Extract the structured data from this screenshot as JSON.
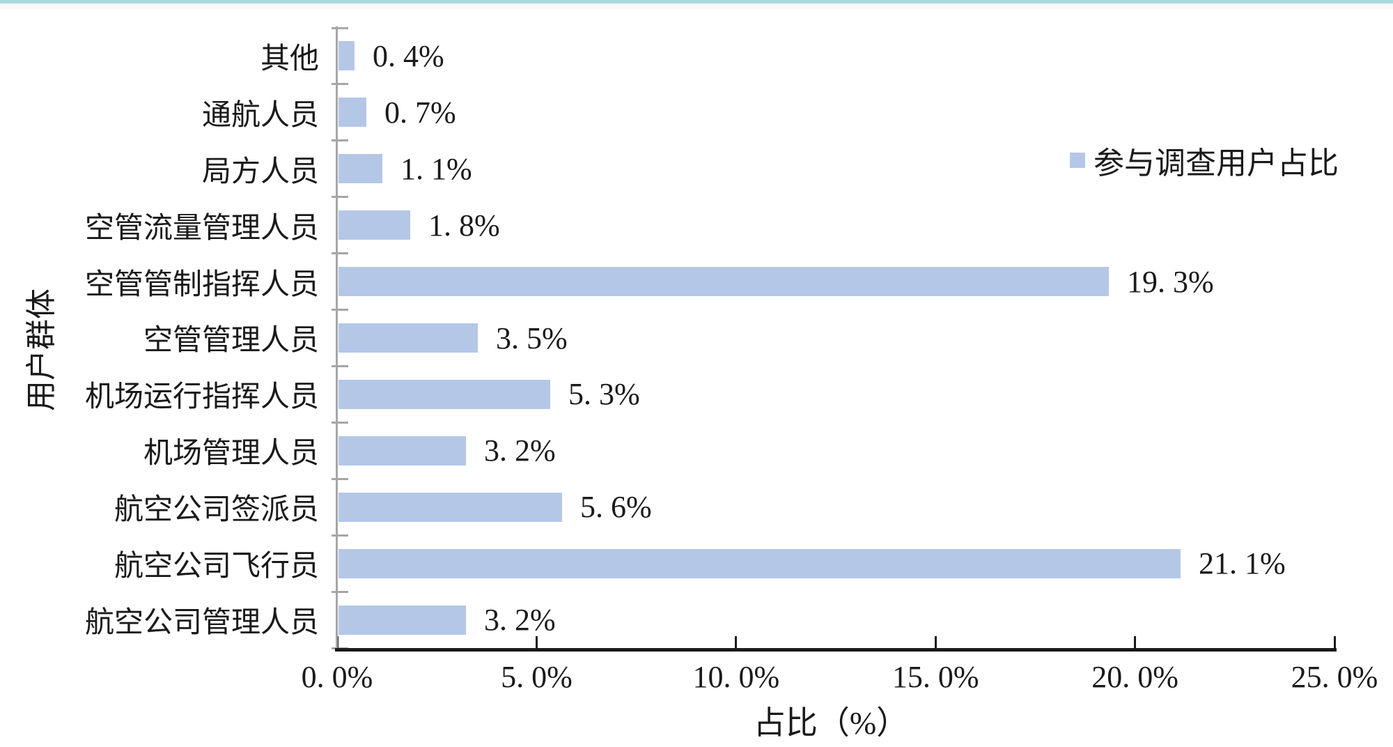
{
  "page": {
    "top_stripe_color": "#a9d8dd",
    "background": "#ffffff",
    "text_color": "#1a1a1a"
  },
  "chart_data": {
    "type": "bar",
    "orientation": "horizontal",
    "title": "",
    "xlabel": "占比（%）",
    "ylabel": "用户群体",
    "legend": [
      {
        "label": "参与调查用户占比",
        "color": "#b4c7e7"
      }
    ],
    "legend_position": "top-right",
    "categories": [
      "其他",
      "通航人员",
      "局方人员",
      "空管流量管理人员",
      "空管管制指挥人员",
      "空管管理人员",
      "机场运行指挥人员",
      "机场管理人员",
      "航空公司签派员",
      "航空公司飞行员",
      "航空公司管理人员"
    ],
    "values": [
      0.4,
      0.7,
      1.1,
      1.8,
      19.3,
      3.5,
      5.3,
      3.2,
      5.6,
      21.1,
      3.2
    ],
    "value_labels": [
      "0. 4%",
      "0. 7%",
      "1. 1%",
      "1. 8%",
      "19. 3%",
      "3. 5%",
      "5. 3%",
      "3. 2%",
      "5. 6%",
      "21. 1%",
      "3. 2%"
    ],
    "xlim": [
      0,
      25
    ],
    "xticks": [
      0,
      5,
      10,
      15,
      20,
      25
    ],
    "xtick_labels": [
      "0. 0%",
      "5. 0%",
      "10. 0%",
      "15. 0%",
      "20. 0%",
      "25. 0%"
    ],
    "bar_color": "#b4c7e7",
    "yaxis_color": "#a6a6a6",
    "xaxis_color": "#1a1a1a",
    "grid": false
  }
}
